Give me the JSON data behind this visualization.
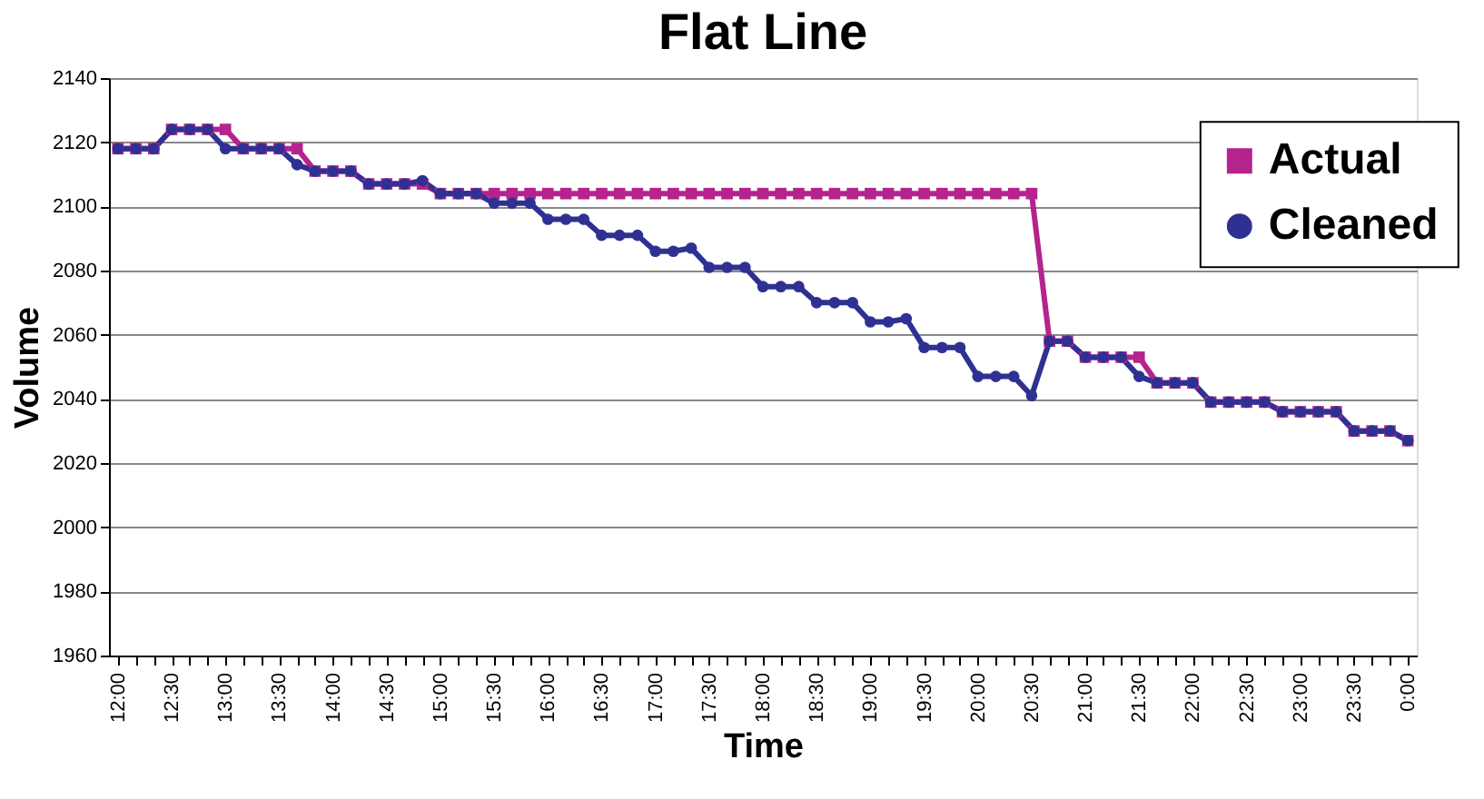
{
  "chart_data": {
    "type": "line",
    "title": "Flat Line",
    "xlabel": "Time",
    "ylabel": "Volume",
    "categories": [
      "12:00",
      null,
      null,
      "12:30",
      null,
      null,
      "13:00",
      null,
      null,
      "13:30",
      null,
      null,
      "14:00",
      null,
      null,
      "14:30",
      null,
      null,
      "15:00",
      null,
      null,
      "15:30",
      null,
      null,
      "16:00",
      null,
      null,
      "16:30",
      null,
      null,
      "17:00",
      null,
      null,
      "17:30",
      null,
      null,
      "18:00",
      null,
      null,
      "18:30",
      null,
      null,
      "19:00",
      null,
      null,
      "19:30",
      null,
      null,
      "20:00",
      null,
      null,
      "20:30",
      null,
      null,
      "21:00",
      null,
      null,
      "21:30",
      null,
      null,
      "22:00",
      null,
      null,
      "22:30",
      null,
      null,
      "23:00",
      null,
      null,
      "23:30",
      null,
      null,
      "0:00"
    ],
    "series": [
      {
        "name": "Actual",
        "color": "#b5238e",
        "marker": "square",
        "values": [
          2118,
          2118,
          2118,
          2124,
          2124,
          2124,
          2124,
          2118,
          2118,
          2118,
          2118,
          2111,
          2111,
          2111,
          2107,
          2107,
          2107,
          2107,
          2104,
          2104,
          2104,
          2104,
          2104,
          2104,
          2104,
          2104,
          2104,
          2104,
          2104,
          2104,
          2104,
          2104,
          2104,
          2104,
          2104,
          2104,
          2104,
          2104,
          2104,
          2104,
          2104,
          2104,
          2104,
          2104,
          2104,
          2104,
          2104,
          2104,
          2104,
          2104,
          2104,
          2104,
          2058,
          2058,
          2053,
          2053,
          2053,
          2053,
          2045,
          2045,
          2045,
          2039,
          2039,
          2039,
          2039,
          2036,
          2036,
          2036,
          2036,
          2030,
          2030,
          2030,
          2027
        ]
      },
      {
        "name": "Cleaned",
        "color": "#2e3192",
        "marker": "circle",
        "values": [
          2118,
          2118,
          2118,
          2124,
          2124,
          2124,
          2118,
          2118,
          2118,
          2118,
          2113,
          2111,
          2111,
          2111,
          2107,
          2107,
          2107,
          2108,
          2104,
          2104,
          2104,
          2101,
          2101,
          2101,
          2096,
          2096,
          2096,
          2091,
          2091,
          2091,
          2086,
          2086,
          2087,
          2081,
          2081,
          2081,
          2075,
          2075,
          2075,
          2070,
          2070,
          2070,
          2064,
          2064,
          2065,
          2056,
          2056,
          2056,
          2047,
          2047,
          2047,
          2041,
          2058,
          2058,
          2053,
          2053,
          2053,
          2047,
          2045,
          2045,
          2045,
          2039,
          2039,
          2039,
          2039,
          2036,
          2036,
          2036,
          2036,
          2030,
          2030,
          2030,
          2027
        ]
      }
    ],
    "ylim": [
      1960,
      2140
    ],
    "yticks": [
      1960,
      1980,
      2000,
      2020,
      2040,
      2060,
      2080,
      2100,
      2120,
      2140
    ],
    "grid": "y",
    "legend": "top right",
    "line_style": "solid"
  }
}
